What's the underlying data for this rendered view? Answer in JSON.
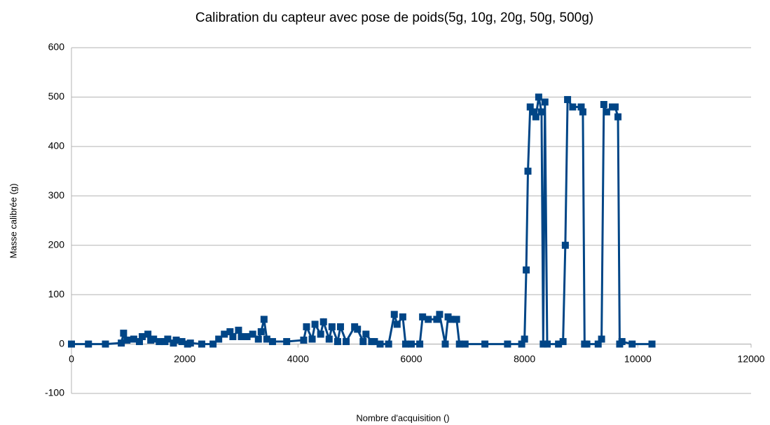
{
  "chart_data": {
    "type": "line",
    "title": "Calibration du capteur avec pose de poids(5g, 10g, 20g, 50g, 500g)",
    "x_label": "Nombre d'acquisition ()",
    "y_label": "Masse calibrée (g)",
    "x": [
      0,
      300,
      600,
      880,
      920,
      980,
      1100,
      1200,
      1250,
      1350,
      1400,
      1450,
      1550,
      1650,
      1700,
      1800,
      1850,
      1950,
      2050,
      2100,
      2300,
      2500,
      2600,
      2700,
      2800,
      2850,
      2950,
      3000,
      3100,
      3200,
      3300,
      3350,
      3400,
      3450,
      3550,
      3800,
      4100,
      4150,
      4250,
      4300,
      4400,
      4450,
      4550,
      4600,
      4700,
      4750,
      4850,
      5000,
      5050,
      5150,
      5200,
      5300,
      5350,
      5450,
      5600,
      5700,
      5750,
      5850,
      5900,
      6000,
      6150,
      6200,
      6300,
      6450,
      6500,
      6600,
      6650,
      6700,
      6800,
      6850,
      6950,
      7300,
      7700,
      7950,
      8000,
      8030,
      8060,
      8100,
      8150,
      8200,
      8250,
      8300,
      8330,
      8360,
      8400,
      8600,
      8680,
      8720,
      8760,
      8850,
      9000,
      9030,
      9060,
      9100,
      9300,
      9360,
      9400,
      9450,
      9550,
      9600,
      9650,
      9680,
      9720,
      9900,
      10250
    ],
    "values": [
      0,
      0,
      0,
      2,
      22,
      8,
      10,
      5,
      15,
      20,
      8,
      10,
      5,
      5,
      10,
      2,
      8,
      5,
      0,
      2,
      0,
      0,
      10,
      20,
      25,
      15,
      28,
      15,
      15,
      20,
      10,
      25,
      50,
      10,
      5,
      5,
      8,
      35,
      10,
      40,
      20,
      45,
      10,
      35,
      5,
      35,
      5,
      35,
      30,
      5,
      20,
      5,
      5,
      0,
      0,
      60,
      40,
      55,
      0,
      0,
      0,
      55,
      50,
      50,
      60,
      0,
      55,
      50,
      50,
      0,
      0,
      0,
      0,
      0,
      10,
      150,
      350,
      480,
      470,
      460,
      500,
      470,
      0,
      490,
      0,
      0,
      5,
      200,
      495,
      480,
      480,
      470,
      0,
      0,
      0,
      10,
      485,
      470,
      480,
      480,
      460,
      0,
      5,
      0,
      0
    ],
    "color": "#004586",
    "xlim": [
      0,
      12000
    ],
    "xticks": [
      0,
      2000,
      4000,
      6000,
      8000,
      10000,
      12000
    ],
    "ylim": [
      -100,
      600
    ],
    "yticks": [
      -100,
      0,
      100,
      200,
      300,
      400,
      500,
      600
    ],
    "grid": true
  }
}
